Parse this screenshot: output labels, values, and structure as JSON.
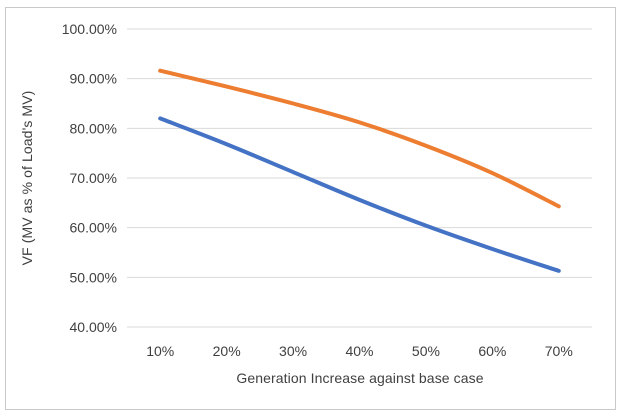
{
  "figure": {
    "background": "#ffffff",
    "frame_border_color": "#c9c9c9"
  },
  "chart_data": {
    "type": "line",
    "title": "",
    "xlabel": "Generation Increase against base case",
    "ylabel": "VF (MV as % of Load's MV)",
    "categories": [
      "10%",
      "20%",
      "30%",
      "40%",
      "50%",
      "60%",
      "70%"
    ],
    "series": [
      {
        "name": "blue-series",
        "color": "#4472C4",
        "values": [
          82.0,
          76.8,
          71.2,
          65.6,
          60.4,
          55.7,
          51.3
        ]
      },
      {
        "name": "orange-series",
        "color": "#ED7D31",
        "values": [
          91.6,
          88.4,
          85.0,
          81.2,
          76.5,
          71.0,
          64.3
        ]
      }
    ],
    "ylim": [
      40,
      100
    ],
    "y_ticks": [
      100,
      90,
      80,
      70,
      60,
      50,
      40
    ],
    "y_tick_labels": [
      "100.00%",
      "90.00%",
      "80.00%",
      "70.00%",
      "60.00%",
      "50.00%",
      "40.00%"
    ],
    "grid": true,
    "legend": "none",
    "gridline_color": "#d9d9d9",
    "text_color": "#404040",
    "line_width": 4
  }
}
